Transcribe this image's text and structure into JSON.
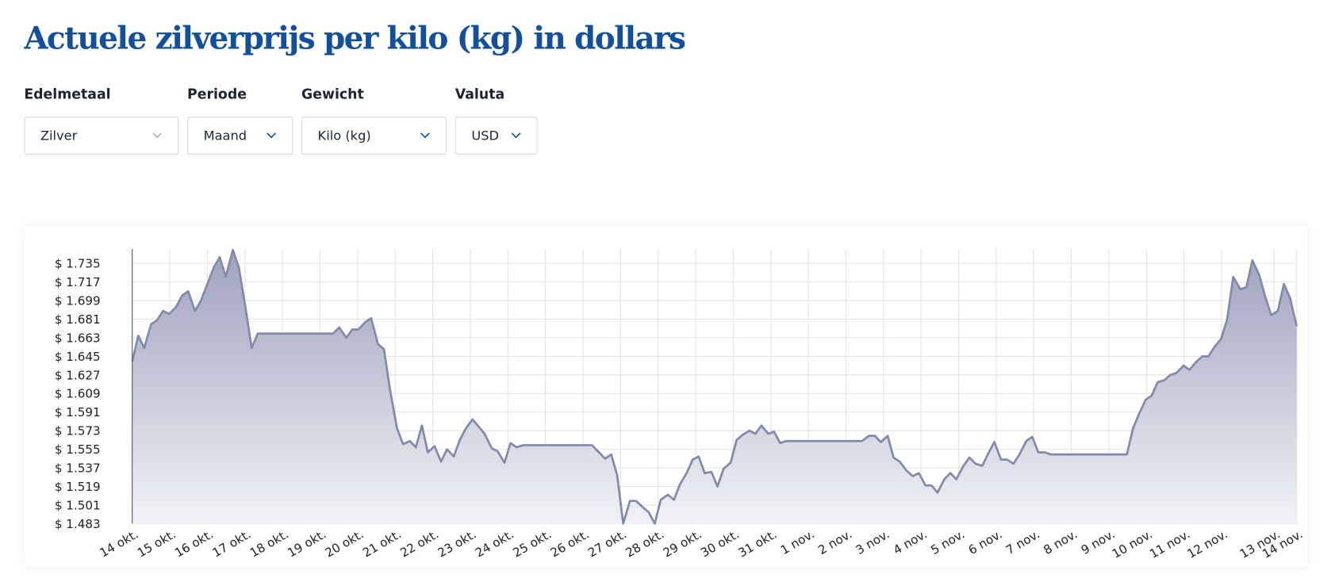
{
  "page": {
    "title": "Actuele zilverprijs per kilo (kg) in dollars",
    "filters": [
      {
        "label": "Edelmetaal",
        "value": "Zilver"
      },
      {
        "label": "Periode",
        "value": "Maand"
      },
      {
        "label": "Gewicht",
        "value": "Kilo (kg)"
      },
      {
        "label": "Valuta",
        "value": "USD"
      }
    ]
  },
  "chart_data": {
    "type": "area",
    "color": "#8389a9",
    "grid": true,
    "x": [
      0,
      0.16,
      0.32,
      0.5,
      0.66,
      0.82,
      0.98,
      1.17,
      1.33,
      1.49,
      1.67,
      1.83,
      1.99,
      2.17,
      2.33,
      2.49,
      2.68,
      2.84,
      3.02,
      3.18,
      3.34,
      5.35,
      5.51,
      5.7,
      5.86,
      6.02,
      6.2,
      6.36,
      6.54,
      6.7,
      6.86,
      7.05,
      7.21,
      7.39,
      7.55,
      7.71,
      7.87,
      8.05,
      8.22,
      8.38,
      8.56,
      8.72,
      8.88,
      9.06,
      9.22,
      9.38,
      9.57,
      9.73,
      9.91,
      10.07,
      10.23,
      10.41,
      12.24,
      12.4,
      12.59,
      12.75,
      12.91,
      13.07,
      13.25,
      13.41,
      13.59,
      13.75,
      13.91,
      14.07,
      14.26,
      14.42,
      14.58,
      14.76,
      14.92,
      15.08,
      15.24,
      15.42,
      15.58,
      15.74,
      15.93,
      16.09,
      16.25,
      16.43,
      16.59,
      16.75,
      16.93,
      17.09,
      17.25,
      17.41,
      19.43,
      19.61,
      19.77,
      19.93,
      20.11,
      20.27,
      20.43,
      20.62,
      20.78,
      20.94,
      21.12,
      21.28,
      21.44,
      21.62,
      21.78,
      21.94,
      22.13,
      22.29,
      22.45,
      22.63,
      22.79,
      22.95,
      23.13,
      23.29,
      23.46,
      23.62,
      23.8,
      23.96,
      24.12,
      24.3,
      24.46,
      26.48,
      26.64,
      26.8,
      26.98,
      27.14,
      27.3,
      27.48,
      27.64,
      27.8,
      27.99,
      28.15,
      28.31,
      28.49,
      28.65,
      28.81,
      28.99,
      29.15,
      29.31,
      29.5,
      29.66,
      29.82,
      30.0,
      30.16,
      30.32,
      30.5,
      30.66,
      30.82,
      31.0
    ],
    "values": [
      1640,
      1665,
      1653,
      1676,
      1680,
      1689,
      1686,
      1693,
      1704,
      1708,
      1689,
      1699,
      1714,
      1731,
      1741,
      1722,
      1748,
      1731,
      1691,
      1653,
      1667,
      1667,
      1673,
      1663,
      1671,
      1671,
      1678,
      1682,
      1657,
      1652,
      1613,
      1575,
      1560,
      1563,
      1557,
      1578,
      1552,
      1558,
      1543,
      1555,
      1548,
      1564,
      1575,
      1584,
      1577,
      1570,
      1556,
      1553,
      1542,
      1561,
      1557,
      1559,
      1559,
      1553,
      1546,
      1550,
      1530,
      1483,
      1505,
      1505,
      1499,
      1494,
      1483,
      1506,
      1511,
      1506,
      1521,
      1532,
      1545,
      1548,
      1532,
      1533,
      1519,
      1536,
      1542,
      1564,
      1569,
      1573,
      1570,
      1578,
      1570,
      1572,
      1561,
      1563,
      1563,
      1568,
      1568,
      1562,
      1568,
      1547,
      1543,
      1534,
      1529,
      1532,
      1520,
      1520,
      1513,
      1526,
      1532,
      1526,
      1539,
      1547,
      1541,
      1539,
      1551,
      1562,
      1545,
      1545,
      1541,
      1550,
      1563,
      1567,
      1552,
      1552,
      1550,
      1550,
      1575,
      1589,
      1603,
      1607,
      1620,
      1622,
      1627,
      1629,
      1636,
      1632,
      1639,
      1645,
      1645,
      1654,
      1662,
      1681,
      1722,
      1710,
      1712,
      1738,
      1724,
      1703,
      1685,
      1689,
      1715,
      1702,
      1674
    ],
    "xlim": [
      0,
      31
    ],
    "xticks": [
      {
        "value": 0,
        "label": "14 okt."
      },
      {
        "value": 1,
        "label": "15 okt."
      },
      {
        "value": 2,
        "label": "16 okt."
      },
      {
        "value": 3,
        "label": "17 okt."
      },
      {
        "value": 4,
        "label": "18 okt."
      },
      {
        "value": 5,
        "label": "19 okt."
      },
      {
        "value": 6,
        "label": "20 okt."
      },
      {
        "value": 7,
        "label": "21 okt."
      },
      {
        "value": 8,
        "label": "22 okt."
      },
      {
        "value": 9,
        "label": "23 okt."
      },
      {
        "value": 10,
        "label": "24 okt."
      },
      {
        "value": 11,
        "label": "25 okt."
      },
      {
        "value": 12,
        "label": "26 okt."
      },
      {
        "value": 13,
        "label": "27 okt."
      },
      {
        "value": 14,
        "label": "28 okt."
      },
      {
        "value": 15,
        "label": "29 okt."
      },
      {
        "value": 16,
        "label": "30 okt."
      },
      {
        "value": 17,
        "label": "31 okt."
      },
      {
        "value": 18,
        "label": "1 nov."
      },
      {
        "value": 19,
        "label": "2 nov."
      },
      {
        "value": 20,
        "label": "3 nov."
      },
      {
        "value": 21,
        "label": "4 nov."
      },
      {
        "value": 22,
        "label": "5 nov."
      },
      {
        "value": 23,
        "label": "6 nov."
      },
      {
        "value": 24,
        "label": "7 nov."
      },
      {
        "value": 25,
        "label": "8 nov."
      },
      {
        "value": 26,
        "label": "9 nov."
      },
      {
        "value": 27,
        "label": "10 nov."
      },
      {
        "value": 28,
        "label": "11 nov."
      },
      {
        "value": 29,
        "label": "12 nov."
      },
      {
        "value": 30.4,
        "label": "13 nov."
      },
      {
        "value": 31,
        "label": "14 nov."
      }
    ],
    "ylim": [
      1483,
      1749
    ],
    "yticks": [
      {
        "value": 1483,
        "label": "$ 1.483"
      },
      {
        "value": 1501,
        "label": "$ 1.501"
      },
      {
        "value": 1519,
        "label": "$ 1.519"
      },
      {
        "value": 1537,
        "label": "$ 1.537"
      },
      {
        "value": 1555,
        "label": "$ 1.555"
      },
      {
        "value": 1573,
        "label": "$ 1.573"
      },
      {
        "value": 1591,
        "label": "$ 1.591"
      },
      {
        "value": 1609,
        "label": "$ 1.609"
      },
      {
        "value": 1627,
        "label": "$ 1.627"
      },
      {
        "value": 1645,
        "label": "$ 1.645"
      },
      {
        "value": 1663,
        "label": "$ 1.663"
      },
      {
        "value": 1681,
        "label": "$ 1.681"
      },
      {
        "value": 1699,
        "label": "$ 1.699"
      },
      {
        "value": 1717,
        "label": "$ 1.717"
      },
      {
        "value": 1735,
        "label": "$ 1.735"
      }
    ]
  }
}
